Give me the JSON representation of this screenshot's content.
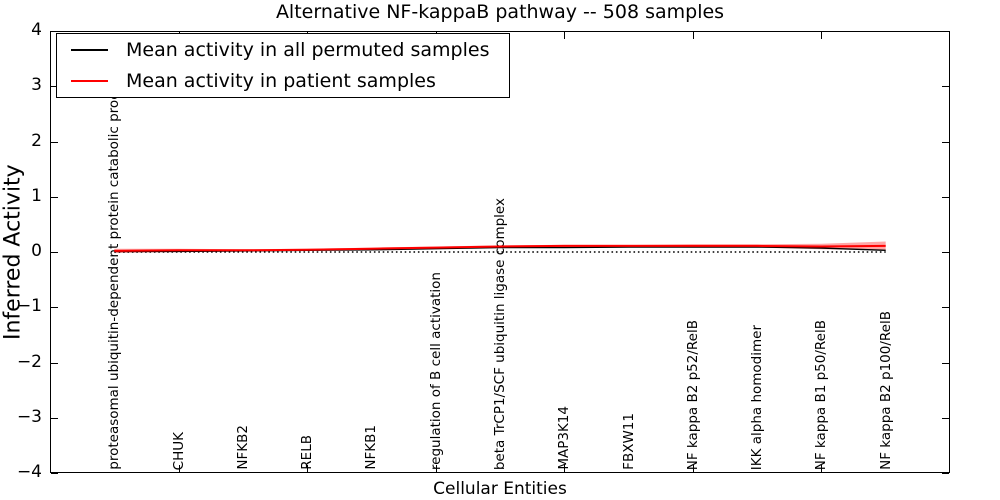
{
  "title": "Alternative NF-kappaB pathway -- 508 samples",
  "legend": {
    "items": [
      {
        "label": "Mean activity in all permuted samples",
        "color": "#000000"
      },
      {
        "label": "Mean activity in patient samples",
        "color": "#ff0000"
      }
    ],
    "position": "upper left"
  },
  "chart_data": {
    "type": "line",
    "title": "Alternative NF-kappaB pathway -- 508 samples",
    "xlabel": "Cellular Entities",
    "ylabel": "Inferred Activity",
    "ylim": [
      -4,
      4
    ],
    "yticks": [
      -4,
      -3,
      -2,
      -1,
      0,
      1,
      2,
      3,
      4
    ],
    "xlim_index": [
      -1,
      13
    ],
    "xtick_index_positions": [
      1,
      3,
      5,
      7,
      9,
      11
    ],
    "grid": false,
    "zero_line": {
      "style": "dotted",
      "color": "#000000",
      "y": 0
    },
    "categories": [
      "proteasomal ubiquitin-dependent protein catabolic process",
      "CHUK",
      "NFKB2",
      "RELB",
      "NFKB1",
      "regulation of B cell activation",
      "beta TrCP1/SCF ubiquitin ligase complex",
      "MAP3K14",
      "FBXW11",
      "NF kappa B2 p52/RelB",
      "IKK alpha homodimer",
      "NF kappa B1 p50/RelB",
      "NF kappa B2 p100/RelB"
    ],
    "series": [
      {
        "name": "Mean activity in all permuted samples",
        "color": "#000000",
        "values": [
          0.01,
          0.01,
          0.02,
          0.03,
          0.04,
          0.06,
          0.08,
          0.08,
          0.09,
          0.09,
          0.09,
          0.07,
          0.03
        ]
      },
      {
        "name": "Mean activity in patient samples",
        "color": "#ff0000",
        "values": [
          0.02,
          0.03,
          0.03,
          0.04,
          0.06,
          0.08,
          0.1,
          0.11,
          0.11,
          0.11,
          0.11,
          0.1,
          0.11
        ],
        "band_half_width": [
          0.04,
          0.03,
          0.02,
          0.02,
          0.02,
          0.02,
          0.02,
          0.02,
          0.02,
          0.03,
          0.03,
          0.05,
          0.08
        ],
        "band_color": "#ff0000",
        "band_opacity": 0.35
      }
    ]
  }
}
